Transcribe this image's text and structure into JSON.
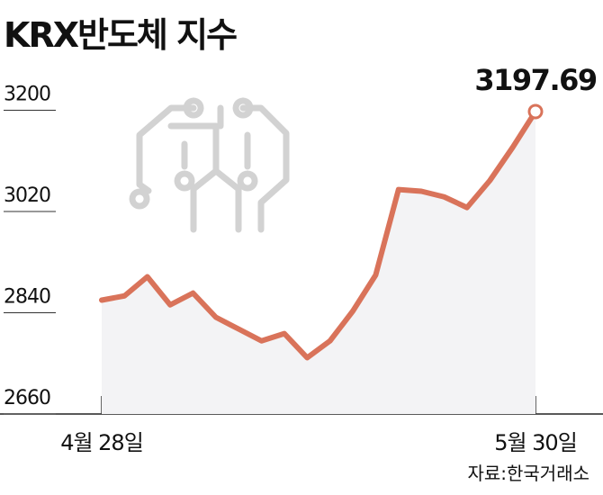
{
  "chart_data": {
    "type": "line",
    "title": "KRX반도체 지수",
    "categories": [
      "4월 28일",
      null,
      null,
      null,
      null,
      null,
      null,
      null,
      null,
      null,
      null,
      null,
      null,
      null,
      null,
      null,
      null,
      null,
      null,
      "5월 30일"
    ],
    "series": [
      {
        "name": "KRX반도체 지수",
        "color": "#d9735a",
        "values": [
          2862.4,
          2870,
          2904,
          2854,
          2875,
          2832,
          2811,
          2790,
          2803,
          2760,
          2790,
          2843,
          2907,
          3059,
          3056,
          3046,
          3027,
          3075,
          3134,
          3197.69
        ]
      }
    ],
    "ylim": [
      2660,
      3250
    ],
    "yticks": [
      2660,
      2840,
      3020,
      3200
    ],
    "source": "자료:한국거래소"
  }
}
